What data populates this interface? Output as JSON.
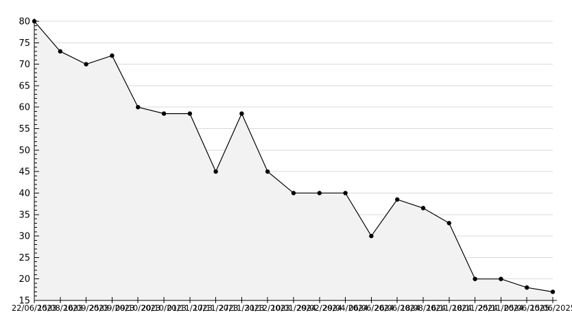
{
  "chart_data": {
    "type": "area",
    "title": "",
    "xlabel": "",
    "ylabel": "",
    "x": [
      "22/06/2023",
      "15/08/2023",
      "16/09/2023",
      "25/09/2023",
      "09/10/2023",
      "20/10/2023",
      "01/11/2023",
      "17/11/2023",
      "27/11/2023",
      "31/12/2023",
      "10/01/2024",
      "29/02/2024",
      "29/04/2024",
      "06/06/2024",
      "26/06/2024",
      "18/08/2024",
      "16/11/2024",
      "18/11/2024",
      "25/11/2024",
      "05/06/2025",
      "15/06/2025"
    ],
    "values": [
      80,
      73,
      70,
      72,
      60,
      58.5,
      58.5,
      45,
      58.5,
      45,
      40,
      40,
      40,
      30,
      38.5,
      36.5,
      33,
      20,
      20,
      18,
      17
    ],
    "ylim": [
      15,
      80
    ],
    "ytick_step": 5,
    "y_minor_step": 1,
    "yticks": [
      15,
      20,
      25,
      30,
      35,
      40,
      45,
      50,
      55,
      60,
      65,
      70,
      75,
      80
    ],
    "grid": true,
    "legend": "none",
    "colors": {
      "line": "#000000",
      "marker": "#000000",
      "fill": "#f2f2f2",
      "grid": "#d9d9d9",
      "axis": "#000000",
      "text": "#000000",
      "background": "#ffffff"
    }
  }
}
